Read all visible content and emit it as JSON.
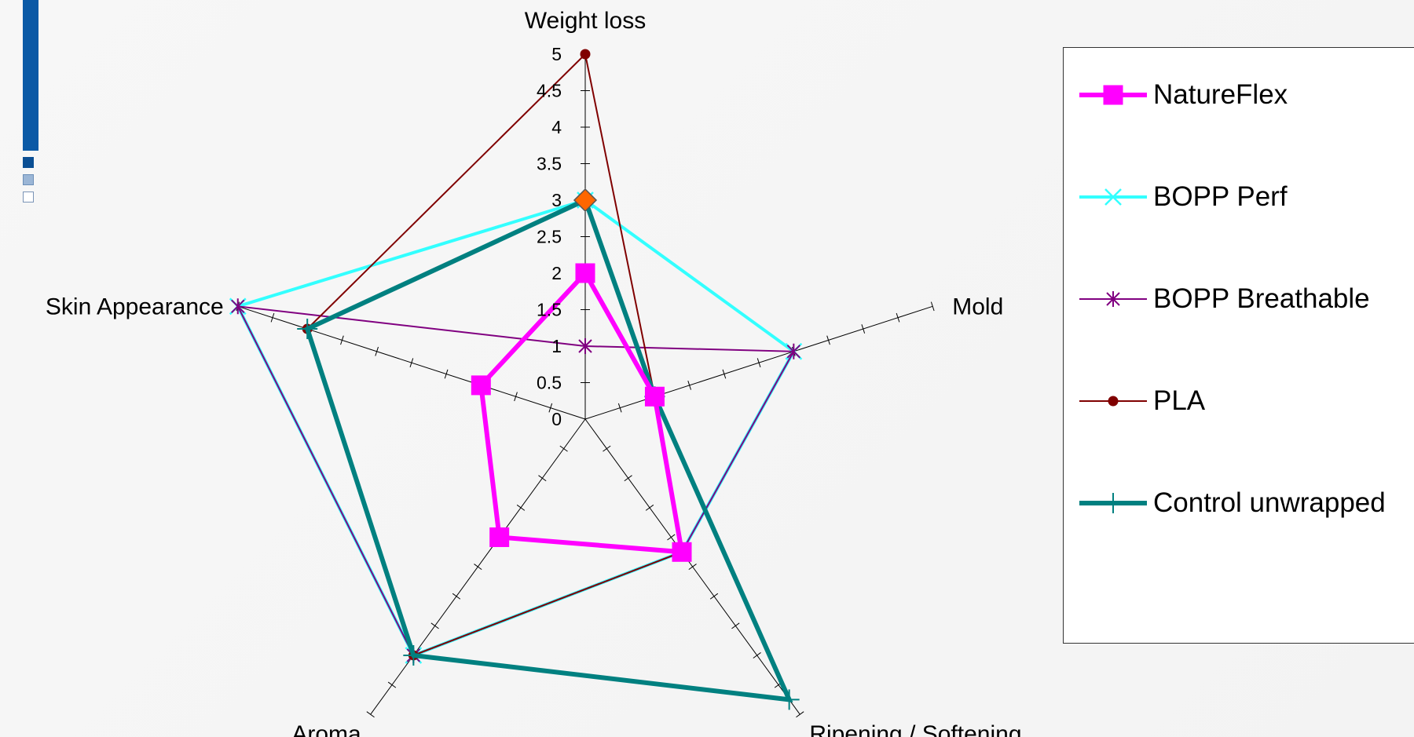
{
  "chart_data": {
    "type": "radar",
    "title": "",
    "axes": [
      "Weight loss",
      "Mold",
      "Ripening / Softening",
      "Aroma",
      "Skin Appearance"
    ],
    "rlim": [
      0,
      5
    ],
    "ticks": [
      "0",
      "0.5",
      "1",
      "1.5",
      "2",
      "2.5",
      "3",
      "3.5",
      "4",
      "4.5",
      "5"
    ],
    "grid": false,
    "legend_position": "right",
    "series": [
      {
        "name": "NatureFlex",
        "values": [
          2,
          1,
          2.25,
          2,
          1.5
        ],
        "color": "#ff00ff",
        "marker": "square",
        "line_width": 6
      },
      {
        "name": "BOPP Perf",
        "values": [
          3,
          3,
          2.25,
          4,
          5
        ],
        "color": "#33ffff",
        "marker": "x",
        "line_width": 4
      },
      {
        "name": "BOPP Breathable",
        "values": [
          1,
          3,
          2.25,
          4,
          5
        ],
        "color": "#800080",
        "marker": "star",
        "line_width": 2
      },
      {
        "name": "PLA",
        "values": [
          5,
          1,
          2.25,
          4,
          4
        ],
        "color": "#800000",
        "marker": "circle",
        "line_width": 2
      },
      {
        "name": "Control unwrapped",
        "values": [
          3,
          1,
          4.75,
          4,
          4
        ],
        "color": "#008080",
        "marker": "plus",
        "line_width": 6
      }
    ],
    "highlight_point": {
      "axis": "Weight loss",
      "value": 3,
      "color": "#ff6600",
      "marker": "diamond"
    }
  }
}
